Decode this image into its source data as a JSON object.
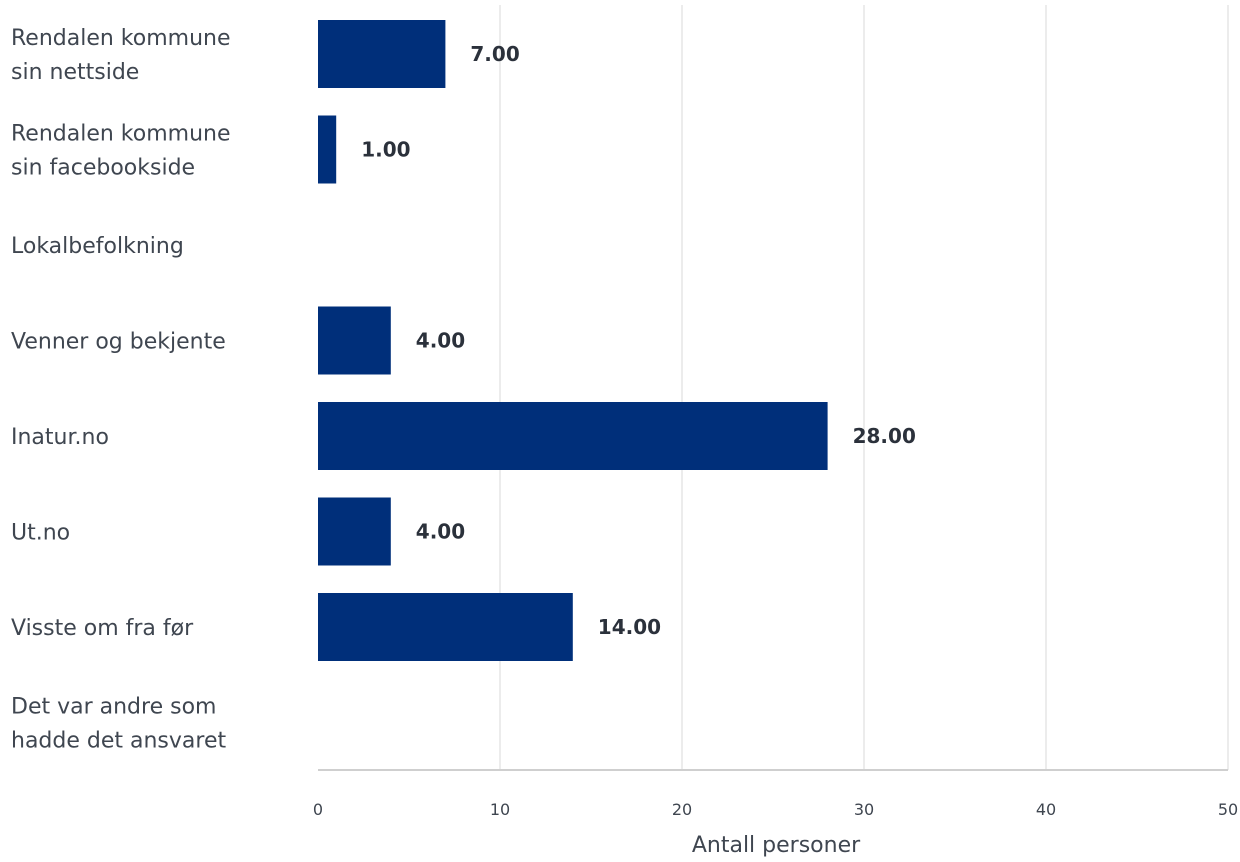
{
  "chart_data": {
    "type": "bar",
    "orientation": "horizontal",
    "categories": [
      [
        "Rendalen kommune",
        "sin nettside"
      ],
      [
        "Rendalen kommune",
        "sin facebookside"
      ],
      [
        "Lokalbefolkning"
      ],
      [
        "Venner og bekjente"
      ],
      [
        "Inatur.no"
      ],
      [
        "Ut.no"
      ],
      [
        "Visste om fra før"
      ],
      [
        "Det var andre som",
        "hadde det ansvaret"
      ]
    ],
    "values": [
      7,
      1,
      null,
      4,
      28,
      4,
      14,
      null
    ],
    "value_labels": [
      "7.00",
      "1.00",
      "",
      "4.00",
      "28.00",
      "4.00",
      "14.00",
      ""
    ],
    "xlabel": "Antall personer",
    "xlim": [
      0,
      50
    ],
    "xticks": [
      0,
      10,
      20,
      30,
      40,
      50
    ],
    "grid": true,
    "bar_color": "#002f7a",
    "grid_color": "#e6e6e6",
    "axis_color": "#cfcfcf"
  }
}
